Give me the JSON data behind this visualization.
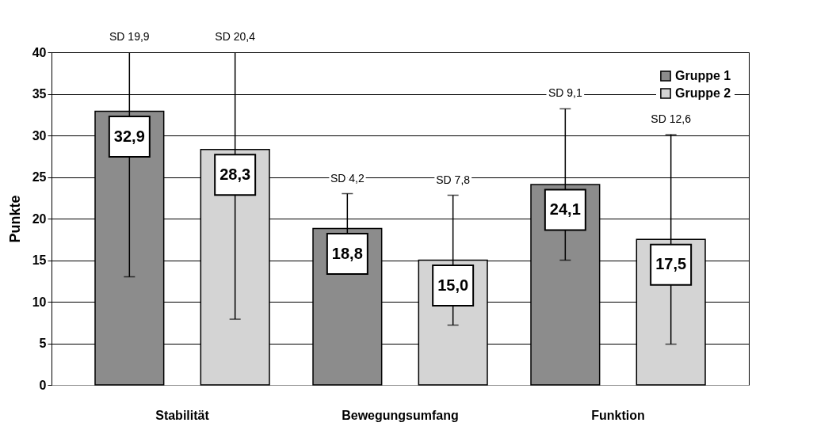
{
  "chart_data": {
    "type": "bar",
    "ylabel": "Punkte",
    "categories": [
      "Stabilität",
      "Bewegungsumfang",
      "Funktion"
    ],
    "series": [
      {
        "name": "Gruppe 1",
        "color": "#8c8c8c",
        "values": [
          32.9,
          18.8,
          24.1
        ],
        "errors": [
          [
            13.0,
            40
          ],
          4.2,
          9.1
        ],
        "value_labels": [
          "32,9",
          "18,8",
          "24,1"
        ]
      },
      {
        "name": "Gruppe 2",
        "color": "#d4d4d4",
        "values": [
          28.3,
          15.0,
          17.5
        ],
        "errors": [
          [
            7.9,
            40
          ],
          7.8,
          12.6
        ],
        "value_labels": [
          "28,3",
          "15,0",
          "17,5"
        ]
      }
    ],
    "annotations": [
      "SD 19,9",
      "SD 20,4",
      "SD 4,2",
      "SD 7,8",
      "SD 9,1",
      "SD 12,6"
    ],
    "ylim": [
      0,
      40
    ],
    "yticks": [
      0,
      5,
      10,
      15,
      20,
      25,
      30,
      35,
      40
    ],
    "grid": "y",
    "legend": "top right"
  }
}
